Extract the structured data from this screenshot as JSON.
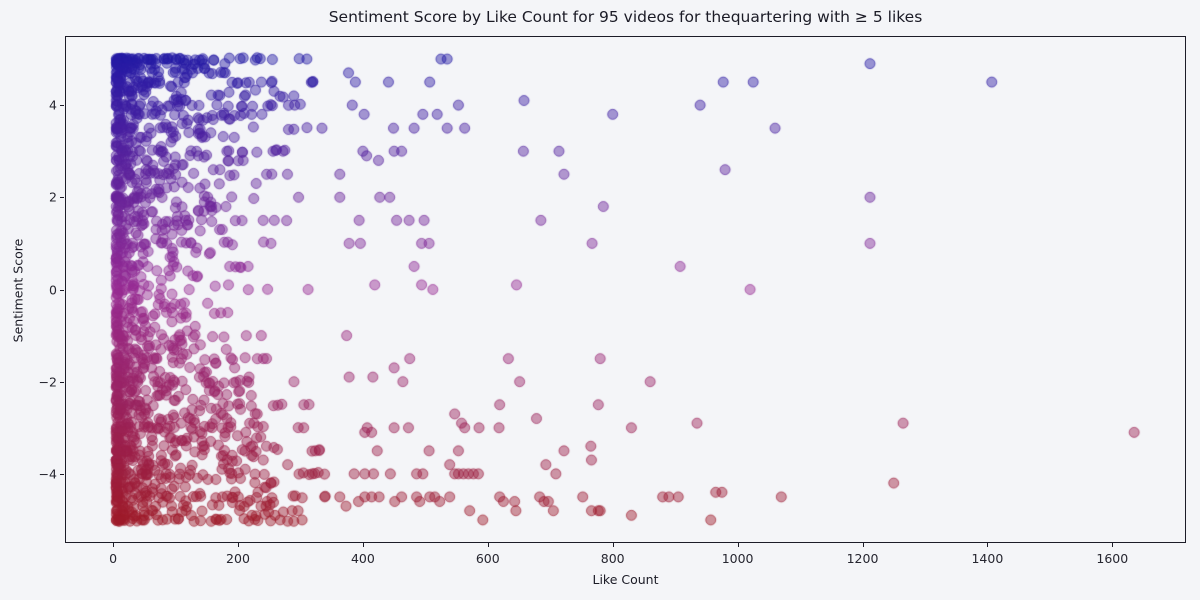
{
  "chart_data": {
    "type": "scatter",
    "title": "Sentiment Score by Like Count for 95 videos for thequartering with ≥ 5 likes",
    "xlabel": "Like Count",
    "ylabel": "Sentiment Score",
    "xlim": [
      -77,
      1718
    ],
    "ylim": [
      -5.5,
      5.5
    ],
    "x_ticks": [
      0,
      200,
      400,
      600,
      800,
      1000,
      1200,
      1400,
      1600
    ],
    "y_ticks": [
      -4,
      -2,
      0,
      2,
      4
    ],
    "grid": false,
    "legend": null,
    "marker": {
      "radius": 5,
      "fill_alpha": 0.45,
      "edge_alpha": 0.65,
      "edge_width": 1
    },
    "color_encoding": {
      "by": "sentiment",
      "stops": [
        {
          "value": -5,
          "color": "#9E1B2B"
        },
        {
          "value": 0,
          "color": "#962B93"
        },
        {
          "value": 5,
          "color": "#241AA5"
        }
      ]
    },
    "seed": 1337,
    "sparse_points": [
      [
        525,
        5
      ],
      [
        535,
        5
      ],
      [
        377,
        4.7
      ],
      [
        1212,
        4.9
      ],
      [
        388,
        4.5
      ],
      [
        441,
        4.5
      ],
      [
        507,
        4.5
      ],
      [
        977,
        4.5
      ],
      [
        1025,
        4.5
      ],
      [
        1407,
        4.5
      ],
      [
        658,
        4.1
      ],
      [
        383,
        4
      ],
      [
        553,
        4
      ],
      [
        940,
        4
      ],
      [
        402,
        3.8
      ],
      [
        496,
        3.8
      ],
      [
        519,
        3.8
      ],
      [
        800,
        3.8
      ],
      [
        449,
        3.5
      ],
      [
        482,
        3.5
      ],
      [
        535,
        3.5
      ],
      [
        563,
        3.5
      ],
      [
        1060,
        3.5
      ],
      [
        400,
        3
      ],
      [
        450,
        3
      ],
      [
        462,
        3
      ],
      [
        657,
        3
      ],
      [
        714,
        3
      ],
      [
        406,
        2.9
      ],
      [
        425,
        2.8
      ],
      [
        363,
        2.5
      ],
      [
        722,
        2.5
      ],
      [
        980,
        2.6
      ],
      [
        363,
        2
      ],
      [
        427,
        2
      ],
      [
        443,
        2
      ],
      [
        1212,
        2
      ],
      [
        785,
        1.8
      ],
      [
        394,
        1.5
      ],
      [
        454,
        1.5
      ],
      [
        474,
        1.5
      ],
      [
        498,
        1.5
      ],
      [
        685,
        1.5
      ],
      [
        378,
        1
      ],
      [
        396,
        1
      ],
      [
        494,
        1
      ],
      [
        506,
        1
      ],
      [
        767,
        1
      ],
      [
        1212,
        1
      ],
      [
        482,
        0.5
      ],
      [
        908,
        0.5
      ],
      [
        419,
        0.1
      ],
      [
        494,
        0.1
      ],
      [
        646,
        0.1
      ],
      [
        512,
        0
      ],
      [
        1020,
        0
      ],
      [
        374,
        -1
      ],
      [
        475,
        -1.5
      ],
      [
        633,
        -1.5
      ],
      [
        780,
        -1.5
      ],
      [
        450,
        -1.7
      ],
      [
        378,
        -1.9
      ],
      [
        416,
        -1.9
      ],
      [
        464,
        -2
      ],
      [
        651,
        -2
      ],
      [
        860,
        -2
      ],
      [
        619,
        -2.5
      ],
      [
        777,
        -2.5
      ],
      [
        547,
        -2.7
      ],
      [
        678,
        -2.8
      ],
      [
        558,
        -2.9
      ],
      [
        935,
        -2.9
      ],
      [
        1265,
        -2.9
      ],
      [
        403,
        -3.1
      ],
      [
        407,
        -3
      ],
      [
        414,
        -3.1
      ],
      [
        450,
        -3
      ],
      [
        473,
        -3
      ],
      [
        563,
        -3
      ],
      [
        586,
        -3
      ],
      [
        618,
        -3
      ],
      [
        830,
        -3
      ],
      [
        1635,
        -3.1
      ],
      [
        423,
        -3.5
      ],
      [
        506,
        -3.5
      ],
      [
        553,
        -3.5
      ],
      [
        722,
        -3.5
      ],
      [
        765,
        -3.4
      ],
      [
        766,
        -3.7
      ],
      [
        539,
        -3.8
      ],
      [
        693,
        -3.8
      ],
      [
        386,
        -4
      ],
      [
        403,
        -4
      ],
      [
        417,
        -4
      ],
      [
        444,
        -4
      ],
      [
        486,
        -4
      ],
      [
        496,
        -4
      ],
      [
        547,
        -4
      ],
      [
        553,
        -4
      ],
      [
        561,
        -4
      ],
      [
        569,
        -4
      ],
      [
        577,
        -4
      ],
      [
        585,
        -4
      ],
      [
        709,
        -4
      ],
      [
        1250,
        -4.2
      ],
      [
        965,
        -4.4
      ],
      [
        975,
        -4.4
      ],
      [
        363,
        -4.5
      ],
      [
        403,
        -4.5
      ],
      [
        414,
        -4.5
      ],
      [
        426,
        -4.5
      ],
      [
        462,
        -4.5
      ],
      [
        486,
        -4.5
      ],
      [
        507,
        -4.5
      ],
      [
        515,
        -4.5
      ],
      [
        539,
        -4.5
      ],
      [
        619,
        -4.5
      ],
      [
        683,
        -4.5
      ],
      [
        752,
        -4.5
      ],
      [
        880,
        -4.5
      ],
      [
        890,
        -4.5
      ],
      [
        905,
        -4.5
      ],
      [
        1070,
        -4.5
      ],
      [
        393,
        -4.6
      ],
      [
        451,
        -4.6
      ],
      [
        491,
        -4.6
      ],
      [
        523,
        -4.6
      ],
      [
        625,
        -4.6
      ],
      [
        643,
        -4.6
      ],
      [
        690,
        -4.6
      ],
      [
        697,
        -4.6
      ],
      [
        373,
        -4.7
      ],
      [
        571,
        -4.8
      ],
      [
        645,
        -4.8
      ],
      [
        705,
        -4.8
      ],
      [
        766,
        -4.8
      ],
      [
        777,
        -4.8
      ],
      [
        780,
        -4.8
      ],
      [
        830,
        -4.9
      ],
      [
        592,
        -5
      ],
      [
        957,
        -5
      ]
    ],
    "dense_bands": [
      [
        5,
        60,
        320
      ],
      [
        4.9,
        25,
        185
      ],
      [
        4.8,
        20,
        150
      ],
      [
        4.7,
        16,
        180
      ],
      [
        4.6,
        12,
        120
      ],
      [
        4.5,
        30,
        320
      ],
      [
        4.4,
        10,
        100
      ],
      [
        4.3,
        15,
        260
      ],
      [
        4.2,
        15,
        300
      ],
      [
        4.1,
        8,
        120
      ],
      [
        4,
        30,
        300
      ],
      [
        3.9,
        6,
        80
      ],
      [
        3.8,
        20,
        240
      ],
      [
        3.7,
        12,
        200
      ],
      [
        3.6,
        8,
        120
      ],
      [
        3.5,
        25,
        340
      ],
      [
        3.4,
        10,
        160
      ],
      [
        3.3,
        12,
        200
      ],
      [
        3.2,
        6,
        100
      ],
      [
        3.1,
        5,
        80
      ],
      [
        3,
        25,
        280
      ],
      [
        2.9,
        10,
        150
      ],
      [
        2.8,
        12,
        220
      ],
      [
        2.7,
        8,
        120
      ],
      [
        2.6,
        10,
        180
      ],
      [
        2.5,
        20,
        280
      ],
      [
        2.4,
        6,
        100
      ],
      [
        2.3,
        12,
        240
      ],
      [
        2.2,
        8,
        150
      ],
      [
        2.1,
        5,
        80
      ],
      [
        2,
        25,
        300
      ],
      [
        1.9,
        10,
        160
      ],
      [
        1.8,
        12,
        200
      ],
      [
        1.7,
        10,
        160
      ],
      [
        1.6,
        8,
        120
      ],
      [
        1.5,
        20,
        280
      ],
      [
        1.4,
        8,
        120
      ],
      [
        1.3,
        10,
        180
      ],
      [
        1.2,
        6,
        100
      ],
      [
        1.1,
        5,
        80
      ],
      [
        1,
        20,
        260
      ],
      [
        0.9,
        8,
        140
      ],
      [
        0.8,
        10,
        160
      ],
      [
        0.7,
        6,
        100
      ],
      [
        0.6,
        6,
        100
      ],
      [
        0.5,
        15,
        220
      ],
      [
        0.4,
        8,
        120
      ],
      [
        0.3,
        8,
        140
      ],
      [
        0.2,
        5,
        80
      ],
      [
        0.1,
        10,
        200
      ],
      [
        0,
        12,
        340
      ],
      [
        -0.1,
        6,
        100
      ],
      [
        -0.2,
        5,
        80
      ],
      [
        -0.3,
        10,
        160
      ],
      [
        -0.4,
        6,
        100
      ],
      [
        -0.5,
        15,
        200
      ],
      [
        -0.6,
        8,
        120
      ],
      [
        -0.7,
        6,
        100
      ],
      [
        -0.8,
        8,
        140
      ],
      [
        -0.9,
        6,
        120
      ],
      [
        -1,
        20,
        240
      ],
      [
        -1.1,
        8,
        120
      ],
      [
        -1.2,
        8,
        140
      ],
      [
        -1.3,
        12,
        200
      ],
      [
        -1.4,
        8,
        120
      ],
      [
        -1.5,
        22,
        260
      ],
      [
        -1.6,
        12,
        180
      ],
      [
        -1.7,
        12,
        200
      ],
      [
        -1.8,
        10,
        160
      ],
      [
        -1.9,
        14,
        220
      ],
      [
        -2,
        28,
        300
      ],
      [
        -2.1,
        12,
        180
      ],
      [
        -2.2,
        14,
        220
      ],
      [
        -2.3,
        14,
        240
      ],
      [
        -2.4,
        10,
        160
      ],
      [
        -2.5,
        25,
        320
      ],
      [
        -2.6,
        14,
        220
      ],
      [
        -2.7,
        14,
        240
      ],
      [
        -2.8,
        12,
        200
      ],
      [
        -2.9,
        14,
        240
      ],
      [
        -3,
        30,
        320
      ],
      [
        -3.1,
        14,
        220
      ],
      [
        -3.2,
        16,
        240
      ],
      [
        -3.3,
        14,
        220
      ],
      [
        -3.4,
        16,
        260
      ],
      [
        -3.5,
        30,
        340
      ],
      [
        -3.6,
        16,
        240
      ],
      [
        -3.7,
        16,
        260
      ],
      [
        -3.8,
        18,
        280
      ],
      [
        -3.9,
        14,
        220
      ],
      [
        -4,
        32,
        340
      ],
      [
        -4.1,
        14,
        220
      ],
      [
        -4.2,
        16,
        260
      ],
      [
        -4.3,
        16,
        260
      ],
      [
        -4.4,
        14,
        240
      ],
      [
        -4.5,
        32,
        340
      ],
      [
        -4.6,
        16,
        260
      ],
      [
        -4.7,
        16,
        260
      ],
      [
        -4.8,
        18,
        300
      ],
      [
        -4.9,
        16,
        260
      ],
      [
        -5,
        40,
        320
      ]
    ]
  },
  "colors": {
    "background": "#f4f5f8",
    "spine": "#1c1c28",
    "text": "#1b1b26",
    "tick_text": "#262630"
  }
}
